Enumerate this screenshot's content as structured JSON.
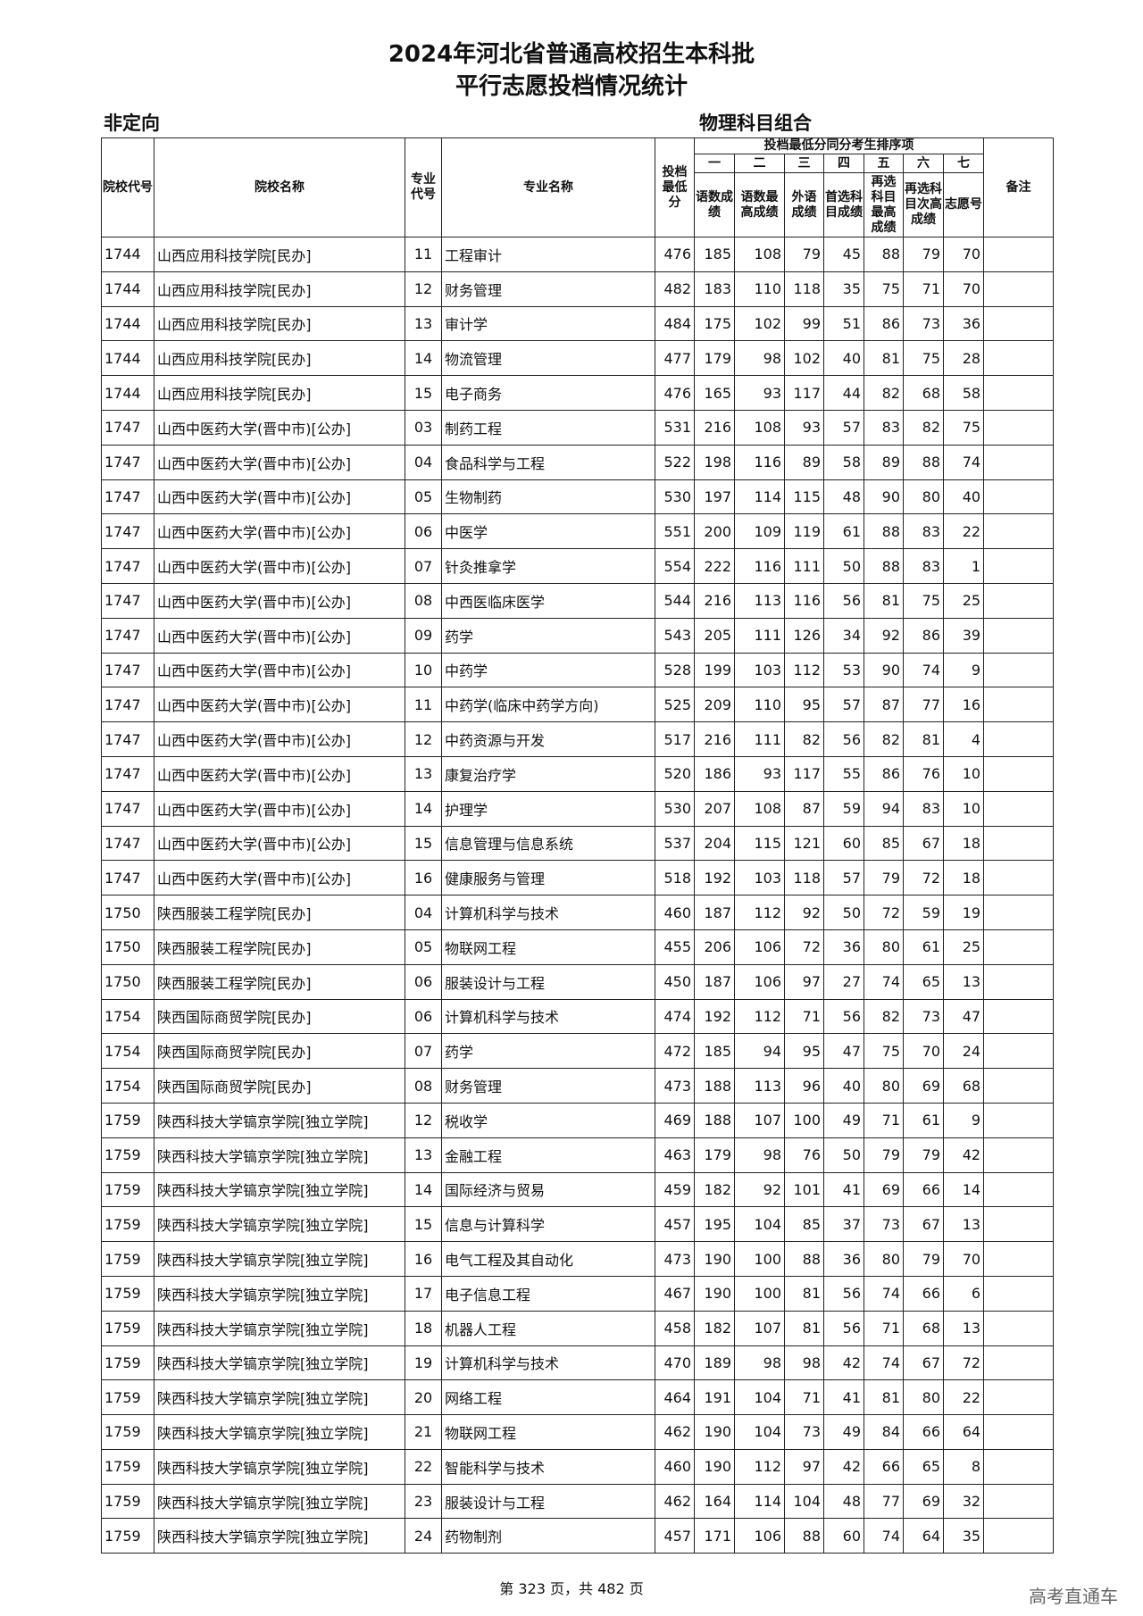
{
  "title": {
    "line1": "2024年河北省普通高校招生本科批",
    "line2": "平行志愿投档情况统计"
  },
  "subheader": {
    "left": "非定向",
    "right": "物理科目组合"
  },
  "columns": {
    "school_code": "院校代号",
    "school_name": "院校名称",
    "major_code": "专业代号",
    "major_name": "专业名称",
    "min_score": "投档最低分",
    "tiebreak_group": "投档最低分同分考生排序项",
    "tiebreak_numbers": [
      "一",
      "二",
      "三",
      "四",
      "五",
      "六",
      "七"
    ],
    "tiebreak_labels": [
      "语数成绩",
      "语数最高成绩",
      "外语成绩",
      "首选科目成绩",
      "再选科目最高成绩",
      "再选科目次高成绩",
      "志愿号"
    ],
    "remarks": "备注"
  },
  "rows": [
    [
      "1744",
      "山西应用科技学院[民办]",
      "11",
      "工程审计",
      "476",
      "185",
      "108",
      "79",
      "45",
      "88",
      "79",
      "70"
    ],
    [
      "1744",
      "山西应用科技学院[民办]",
      "12",
      "财务管理",
      "482",
      "183",
      "110",
      "118",
      "35",
      "75",
      "71",
      "70"
    ],
    [
      "1744",
      "山西应用科技学院[民办]",
      "13",
      "审计学",
      "484",
      "175",
      "102",
      "99",
      "51",
      "86",
      "73",
      "36"
    ],
    [
      "1744",
      "山西应用科技学院[民办]",
      "14",
      "物流管理",
      "477",
      "179",
      "98",
      "102",
      "40",
      "81",
      "75",
      "28"
    ],
    [
      "1744",
      "山西应用科技学院[民办]",
      "15",
      "电子商务",
      "476",
      "165",
      "93",
      "117",
      "44",
      "82",
      "68",
      "58"
    ],
    [
      "1747",
      "山西中医药大学(晋中市)[公办]",
      "03",
      "制药工程",
      "531",
      "216",
      "108",
      "93",
      "57",
      "83",
      "82",
      "75"
    ],
    [
      "1747",
      "山西中医药大学(晋中市)[公办]",
      "04",
      "食品科学与工程",
      "522",
      "198",
      "116",
      "89",
      "58",
      "89",
      "88",
      "74"
    ],
    [
      "1747",
      "山西中医药大学(晋中市)[公办]",
      "05",
      "生物制药",
      "530",
      "197",
      "114",
      "115",
      "48",
      "90",
      "80",
      "40"
    ],
    [
      "1747",
      "山西中医药大学(晋中市)[公办]",
      "06",
      "中医学",
      "551",
      "200",
      "109",
      "119",
      "61",
      "88",
      "83",
      "22"
    ],
    [
      "1747",
      "山西中医药大学(晋中市)[公办]",
      "07",
      "针灸推拿学",
      "554",
      "222",
      "116",
      "111",
      "50",
      "88",
      "83",
      "1"
    ],
    [
      "1747",
      "山西中医药大学(晋中市)[公办]",
      "08",
      "中西医临床医学",
      "544",
      "216",
      "113",
      "116",
      "56",
      "81",
      "75",
      "25"
    ],
    [
      "1747",
      "山西中医药大学(晋中市)[公办]",
      "09",
      "药学",
      "543",
      "205",
      "111",
      "126",
      "34",
      "92",
      "86",
      "39"
    ],
    [
      "1747",
      "山西中医药大学(晋中市)[公办]",
      "10",
      "中药学",
      "528",
      "199",
      "103",
      "112",
      "53",
      "90",
      "74",
      "9"
    ],
    [
      "1747",
      "山西中医药大学(晋中市)[公办]",
      "11",
      "中药学(临床中药学方向)",
      "525",
      "209",
      "110",
      "95",
      "57",
      "87",
      "77",
      "16"
    ],
    [
      "1747",
      "山西中医药大学(晋中市)[公办]",
      "12",
      "中药资源与开发",
      "517",
      "216",
      "111",
      "82",
      "56",
      "82",
      "81",
      "4"
    ],
    [
      "1747",
      "山西中医药大学(晋中市)[公办]",
      "13",
      "康复治疗学",
      "520",
      "186",
      "93",
      "117",
      "55",
      "86",
      "76",
      "10"
    ],
    [
      "1747",
      "山西中医药大学(晋中市)[公办]",
      "14",
      "护理学",
      "530",
      "207",
      "108",
      "87",
      "59",
      "94",
      "83",
      "10"
    ],
    [
      "1747",
      "山西中医药大学(晋中市)[公办]",
      "15",
      "信息管理与信息系统",
      "537",
      "204",
      "115",
      "121",
      "60",
      "85",
      "67",
      "18"
    ],
    [
      "1747",
      "山西中医药大学(晋中市)[公办]",
      "16",
      "健康服务与管理",
      "518",
      "192",
      "103",
      "118",
      "57",
      "79",
      "72",
      "18"
    ],
    [
      "1750",
      "陕西服装工程学院[民办]",
      "04",
      "计算机科学与技术",
      "460",
      "187",
      "112",
      "92",
      "50",
      "72",
      "59",
      "19"
    ],
    [
      "1750",
      "陕西服装工程学院[民办]",
      "05",
      "物联网工程",
      "455",
      "206",
      "106",
      "72",
      "36",
      "80",
      "61",
      "25"
    ],
    [
      "1750",
      "陕西服装工程学院[民办]",
      "06",
      "服装设计与工程",
      "450",
      "187",
      "106",
      "97",
      "27",
      "74",
      "65",
      "13"
    ],
    [
      "1754",
      "陕西国际商贸学院[民办]",
      "06",
      "计算机科学与技术",
      "474",
      "192",
      "112",
      "71",
      "56",
      "82",
      "73",
      "47"
    ],
    [
      "1754",
      "陕西国际商贸学院[民办]",
      "07",
      "药学",
      "472",
      "185",
      "94",
      "95",
      "47",
      "75",
      "70",
      "24"
    ],
    [
      "1754",
      "陕西国际商贸学院[民办]",
      "08",
      "财务管理",
      "473",
      "188",
      "113",
      "96",
      "40",
      "80",
      "69",
      "68"
    ],
    [
      "1759",
      "陕西科技大学镐京学院[独立学院]",
      "12",
      "税收学",
      "469",
      "188",
      "107",
      "100",
      "49",
      "71",
      "61",
      "9"
    ],
    [
      "1759",
      "陕西科技大学镐京学院[独立学院]",
      "13",
      "金融工程",
      "463",
      "179",
      "98",
      "76",
      "50",
      "79",
      "79",
      "42"
    ],
    [
      "1759",
      "陕西科技大学镐京学院[独立学院]",
      "14",
      "国际经济与贸易",
      "459",
      "182",
      "92",
      "101",
      "41",
      "69",
      "66",
      "14"
    ],
    [
      "1759",
      "陕西科技大学镐京学院[独立学院]",
      "15",
      "信息与计算科学",
      "457",
      "195",
      "104",
      "85",
      "37",
      "73",
      "67",
      "13"
    ],
    [
      "1759",
      "陕西科技大学镐京学院[独立学院]",
      "16",
      "电气工程及其自动化",
      "473",
      "190",
      "100",
      "88",
      "36",
      "80",
      "79",
      "70"
    ],
    [
      "1759",
      "陕西科技大学镐京学院[独立学院]",
      "17",
      "电子信息工程",
      "467",
      "190",
      "100",
      "81",
      "56",
      "74",
      "66",
      "6"
    ],
    [
      "1759",
      "陕西科技大学镐京学院[独立学院]",
      "18",
      "机器人工程",
      "458",
      "182",
      "107",
      "81",
      "56",
      "71",
      "68",
      "13"
    ],
    [
      "1759",
      "陕西科技大学镐京学院[独立学院]",
      "19",
      "计算机科学与技术",
      "470",
      "189",
      "98",
      "98",
      "42",
      "74",
      "67",
      "72"
    ],
    [
      "1759",
      "陕西科技大学镐京学院[独立学院]",
      "20",
      "网络工程",
      "464",
      "191",
      "104",
      "71",
      "41",
      "81",
      "80",
      "22"
    ],
    [
      "1759",
      "陕西科技大学镐京学院[独立学院]",
      "21",
      "物联网工程",
      "462",
      "190",
      "104",
      "73",
      "49",
      "84",
      "66",
      "64"
    ],
    [
      "1759",
      "陕西科技大学镐京学院[独立学院]",
      "22",
      "智能科学与技术",
      "460",
      "190",
      "112",
      "97",
      "42",
      "66",
      "65",
      "8"
    ],
    [
      "1759",
      "陕西科技大学镐京学院[独立学院]",
      "23",
      "服装设计与工程",
      "462",
      "164",
      "114",
      "104",
      "48",
      "77",
      "69",
      "32"
    ],
    [
      "1759",
      "陕西科技大学镐京学院[独立学院]",
      "24",
      "药物制剂",
      "457",
      "171",
      "106",
      "88",
      "60",
      "74",
      "64",
      "35"
    ]
  ],
  "footer": "第 323 页，共 482 页",
  "watermark": "高考直通车"
}
